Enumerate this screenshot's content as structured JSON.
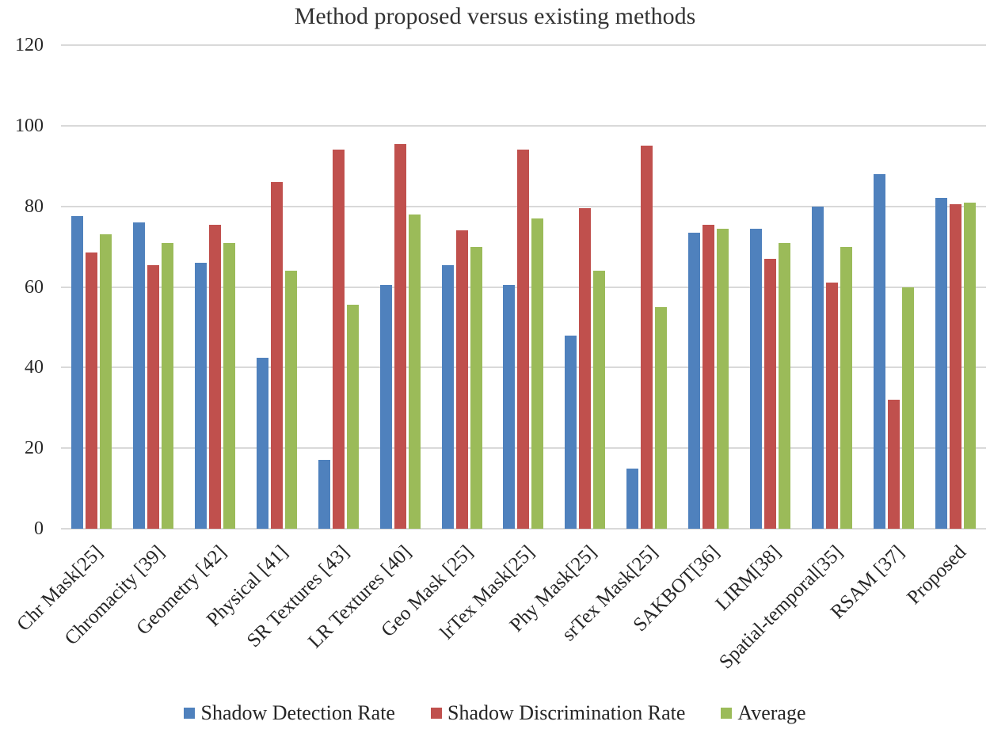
{
  "chart_data": {
    "type": "bar",
    "title": "Method proposed versus existing methods",
    "xlabel": "",
    "ylabel": "",
    "ylim": [
      0,
      120
    ],
    "yticks": [
      0,
      20,
      40,
      60,
      80,
      100,
      120
    ],
    "grid": true,
    "legend_position": "bottom",
    "categories": [
      "Chr Mask[25]",
      "Chromacity [39]",
      "Geometry [42]",
      "Physical [41]",
      "SR Textures [43]",
      "LR Textures [40]",
      "Geo Mask [25]",
      "lrTex Mask[25]",
      "Phy Mask[25]",
      "srTex Mask[25]",
      "SAKBOT[36]",
      "LIRM[38]",
      "Spatial-temporal[35]",
      "RSAM [37]",
      "Proposed"
    ],
    "series": [
      {
        "name": "Shadow Detection Rate",
        "color": "#4F81BD",
        "values": [
          77.5,
          76,
          66,
          42.5,
          17,
          60.5,
          65.5,
          60.5,
          48,
          15,
          73.5,
          74.5,
          80,
          88,
          82
        ]
      },
      {
        "name": "Shadow Discrimination Rate",
        "color": "#C0504D",
        "values": [
          68.5,
          65.5,
          75.5,
          86,
          94,
          95.5,
          74,
          94,
          79.5,
          95,
          75.5,
          67,
          61,
          32,
          80.5
        ]
      },
      {
        "name": "Average",
        "color": "#9BBB59",
        "values": [
          73,
          71,
          71,
          64,
          55.5,
          78,
          70,
          77,
          64,
          55,
          74.5,
          71,
          70,
          60,
          81
        ]
      }
    ]
  }
}
